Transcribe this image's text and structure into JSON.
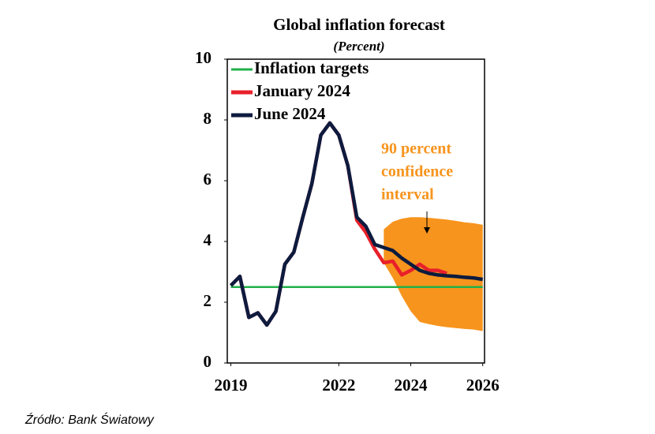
{
  "chart_data": {
    "type": "line",
    "title": "Global inflation forecast",
    "subtitle": "(Percent)",
    "source": "Źródło: Bank Światowy",
    "x": [
      2019,
      2019.25,
      2019.5,
      2019.75,
      2020,
      2020.25,
      2020.5,
      2020.75,
      2021,
      2021.25,
      2021.5,
      2021.75,
      2022,
      2022.25,
      2022.5,
      2022.75,
      2023,
      2023.25,
      2023.5,
      2023.75,
      2024,
      2024.25,
      2024.5,
      2024.75,
      2025,
      2025.25,
      2025.5,
      2025.75,
      2026
    ],
    "xlim": [
      2018.9,
      2026.05
    ],
    "xticks": [
      2019,
      2022,
      2024,
      2026
    ],
    "ylim": [
      0,
      10
    ],
    "yticks": [
      0,
      2,
      4,
      6,
      8,
      10
    ],
    "band": {
      "name": "90 percent confidence interval",
      "label_lines": [
        "90 percent",
        "confidence",
        "interval"
      ],
      "color": "#f7941d",
      "upper": [
        null,
        null,
        null,
        null,
        null,
        null,
        null,
        null,
        null,
        null,
        null,
        null,
        null,
        null,
        null,
        null,
        null,
        4.4,
        4.65,
        4.75,
        4.8,
        4.8,
        4.78,
        4.75,
        4.72,
        4.68,
        4.63,
        4.6,
        4.55
      ],
      "lower": [
        null,
        null,
        null,
        null,
        null,
        null,
        null,
        null,
        null,
        null,
        null,
        null,
        null,
        null,
        null,
        null,
        null,
        3.3,
        2.8,
        2.2,
        1.7,
        1.35,
        1.28,
        1.22,
        1.18,
        1.15,
        1.12,
        1.1,
        1.05
      ]
    },
    "series": [
      {
        "name": "Inflation targets",
        "color": "#22b04b",
        "values": [
          2.5,
          2.5,
          2.5,
          2.5,
          2.5,
          2.5,
          2.5,
          2.5,
          2.5,
          2.5,
          2.5,
          2.5,
          2.5,
          2.5,
          2.5,
          2.5,
          2.5,
          2.5,
          2.5,
          2.5,
          2.5,
          2.5,
          2.5,
          2.5,
          2.5,
          2.5,
          2.5,
          2.5,
          2.5
        ]
      },
      {
        "name": "January 2024",
        "color": "#e8202a",
        "values": [
          2.55,
          2.85,
          1.5,
          1.65,
          1.25,
          1.7,
          3.25,
          3.65,
          4.8,
          5.9,
          7.5,
          7.9,
          7.5,
          6.5,
          4.7,
          4.3,
          3.75,
          3.3,
          3.35,
          2.9,
          3.05,
          3.25,
          3.05,
          3.05,
          2.95,
          null,
          null,
          null,
          null
        ]
      },
      {
        "name": "June 2024",
        "color": "#0d1b3e",
        "values": [
          2.55,
          2.85,
          1.5,
          1.65,
          1.25,
          1.7,
          3.25,
          3.65,
          4.8,
          5.9,
          7.5,
          7.9,
          7.5,
          6.5,
          4.8,
          4.5,
          3.9,
          3.8,
          3.7,
          3.45,
          3.25,
          3.05,
          2.95,
          2.9,
          2.87,
          2.85,
          2.82,
          2.8,
          2.75
        ]
      }
    ]
  }
}
